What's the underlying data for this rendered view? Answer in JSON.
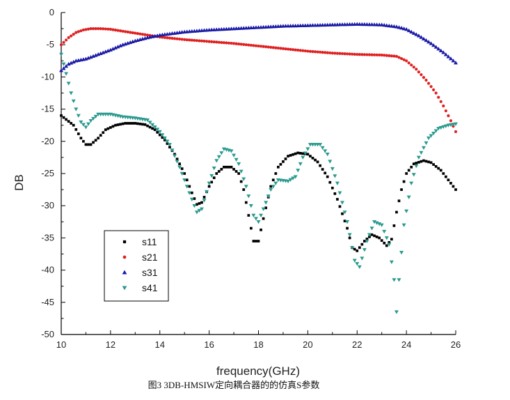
{
  "chart_data": {
    "type": "scatter",
    "xlabel": "frequency(GHz)",
    "ylabel": "DB",
    "caption": "图3 3DB-HMSIW定向耦合器的的仿真S参数",
    "xlim": [
      10,
      26
    ],
    "ylim": [
      -50,
      0
    ],
    "x_ticks": [
      10,
      12,
      14,
      16,
      18,
      20,
      22,
      24,
      26
    ],
    "y_ticks": [
      0,
      -5,
      -10,
      -15,
      -20,
      -25,
      -30,
      -35,
      -40,
      -45,
      -50
    ],
    "grid": false,
    "legend_position": "bottom-left",
    "series": [
      {
        "name": "s11",
        "marker": "square",
        "color": "#000000",
        "points": [
          [
            10.0,
            -16.0
          ],
          [
            10.5,
            -17.5
          ],
          [
            10.8,
            -19.5
          ],
          [
            11.0,
            -20.5
          ],
          [
            11.2,
            -20.5
          ],
          [
            11.5,
            -19.5
          ],
          [
            11.8,
            -18.2
          ],
          [
            12.2,
            -17.5
          ],
          [
            12.6,
            -17.2
          ],
          [
            13.0,
            -17.2
          ],
          [
            13.4,
            -17.4
          ],
          [
            13.8,
            -18.2
          ],
          [
            14.2,
            -19.8
          ],
          [
            14.6,
            -22.0
          ],
          [
            15.0,
            -25.0
          ],
          [
            15.3,
            -28.0
          ],
          [
            15.5,
            -29.8
          ],
          [
            15.7,
            -29.5
          ],
          [
            16.0,
            -27.0
          ],
          [
            16.3,
            -25.0
          ],
          [
            16.6,
            -24.0
          ],
          [
            16.9,
            -24.0
          ],
          [
            17.2,
            -25.0
          ],
          [
            17.4,
            -27.5
          ],
          [
            17.6,
            -31.5
          ],
          [
            17.8,
            -35.5
          ],
          [
            18.0,
            -35.5
          ],
          [
            18.2,
            -32.0
          ],
          [
            18.5,
            -27.0
          ],
          [
            18.8,
            -24.0
          ],
          [
            19.2,
            -22.3
          ],
          [
            19.6,
            -21.8
          ],
          [
            20.0,
            -22.0
          ],
          [
            20.4,
            -23.2
          ],
          [
            20.8,
            -25.5
          ],
          [
            21.2,
            -29.0
          ],
          [
            21.6,
            -33.5
          ],
          [
            21.8,
            -36.5
          ],
          [
            22.0,
            -37.0
          ],
          [
            22.3,
            -35.5
          ],
          [
            22.6,
            -34.5
          ],
          [
            22.9,
            -35.0
          ],
          [
            23.2,
            -36.2
          ],
          [
            23.4,
            -35.2
          ],
          [
            23.6,
            -31.0
          ],
          [
            23.8,
            -27.5
          ],
          [
            24.0,
            -25.0
          ],
          [
            24.3,
            -23.5
          ],
          [
            24.7,
            -23.0
          ],
          [
            25.0,
            -23.3
          ],
          [
            25.4,
            -24.5
          ],
          [
            25.7,
            -26.0
          ],
          [
            26.0,
            -27.5
          ]
        ]
      },
      {
        "name": "s21",
        "marker": "circle",
        "color": "#e02020",
        "points": [
          [
            10.0,
            -5.0
          ],
          [
            10.3,
            -3.9
          ],
          [
            10.6,
            -3.1
          ],
          [
            10.9,
            -2.7
          ],
          [
            11.2,
            -2.5
          ],
          [
            11.6,
            -2.5
          ],
          [
            12.0,
            -2.6
          ],
          [
            12.5,
            -2.9
          ],
          [
            13.0,
            -3.2
          ],
          [
            13.5,
            -3.5
          ],
          [
            14.0,
            -3.8
          ],
          [
            15.0,
            -4.2
          ],
          [
            16.0,
            -4.5
          ],
          [
            17.0,
            -4.8
          ],
          [
            18.0,
            -5.2
          ],
          [
            19.0,
            -5.6
          ],
          [
            20.0,
            -6.0
          ],
          [
            21.0,
            -6.3
          ],
          [
            22.0,
            -6.5
          ],
          [
            23.0,
            -6.6
          ],
          [
            23.6,
            -6.8
          ],
          [
            24.0,
            -7.5
          ],
          [
            24.4,
            -8.8
          ],
          [
            24.8,
            -10.5
          ],
          [
            25.2,
            -12.5
          ],
          [
            25.5,
            -14.5
          ],
          [
            25.8,
            -16.8
          ],
          [
            26.0,
            -18.5
          ]
        ]
      },
      {
        "name": "s31",
        "marker": "triangle-up",
        "color": "#1a1aa6",
        "points": [
          [
            10.0,
            -9.0
          ],
          [
            10.3,
            -8.0
          ],
          [
            10.6,
            -7.5
          ],
          [
            11.0,
            -7.2
          ],
          [
            11.5,
            -6.5
          ],
          [
            12.0,
            -5.8
          ],
          [
            12.5,
            -5.0
          ],
          [
            13.0,
            -4.4
          ],
          [
            13.5,
            -3.9
          ],
          [
            14.0,
            -3.5
          ],
          [
            15.0,
            -3.0
          ],
          [
            16.0,
            -2.7
          ],
          [
            17.0,
            -2.5
          ],
          [
            18.0,
            -2.3
          ],
          [
            19.0,
            -2.1
          ],
          [
            20.0,
            -2.0
          ],
          [
            21.0,
            -1.9
          ],
          [
            22.0,
            -1.8
          ],
          [
            23.0,
            -1.9
          ],
          [
            23.6,
            -2.2
          ],
          [
            24.0,
            -2.6
          ],
          [
            24.5,
            -3.6
          ],
          [
            25.0,
            -4.8
          ],
          [
            25.5,
            -6.2
          ],
          [
            26.0,
            -7.8
          ]
        ]
      },
      {
        "name": "s41",
        "marker": "triangle-down",
        "color": "#2a9a8e",
        "points": [
          [
            10.0,
            -6.5
          ],
          [
            10.2,
            -9.5
          ],
          [
            10.4,
            -12.5
          ],
          [
            10.6,
            -15.0
          ],
          [
            10.8,
            -17.0
          ],
          [
            11.0,
            -17.8
          ],
          [
            11.2,
            -16.8
          ],
          [
            11.5,
            -15.8
          ],
          [
            12.0,
            -15.8
          ],
          [
            12.5,
            -16.2
          ],
          [
            13.0,
            -16.4
          ],
          [
            13.5,
            -16.7
          ],
          [
            14.0,
            -18.5
          ],
          [
            14.4,
            -20.5
          ],
          [
            14.8,
            -24.0
          ],
          [
            15.2,
            -28.0
          ],
          [
            15.5,
            -31.0
          ],
          [
            15.7,
            -30.5
          ],
          [
            16.0,
            -26.5
          ],
          [
            16.3,
            -23.0
          ],
          [
            16.6,
            -21.2
          ],
          [
            16.9,
            -21.5
          ],
          [
            17.2,
            -23.5
          ],
          [
            17.5,
            -27.0
          ],
          [
            17.8,
            -31.5
          ],
          [
            18.0,
            -32.5
          ],
          [
            18.2,
            -30.5
          ],
          [
            18.5,
            -27.5
          ],
          [
            18.8,
            -26.0
          ],
          [
            19.2,
            -26.2
          ],
          [
            19.5,
            -25.5
          ],
          [
            19.8,
            -22.5
          ],
          [
            20.1,
            -20.5
          ],
          [
            20.5,
            -20.5
          ],
          [
            20.8,
            -22.0
          ],
          [
            21.2,
            -26.5
          ],
          [
            21.6,
            -32.5
          ],
          [
            21.9,
            -38.5
          ],
          [
            22.1,
            -39.5
          ],
          [
            22.4,
            -35.5
          ],
          [
            22.7,
            -32.5
          ],
          [
            23.0,
            -33.0
          ],
          [
            23.3,
            -36.0
          ],
          [
            23.5,
            -41.5
          ],
          [
            23.6,
            -46.5
          ],
          [
            23.7,
            -41.5
          ],
          [
            23.9,
            -33.0
          ],
          [
            24.2,
            -26.5
          ],
          [
            24.5,
            -22.5
          ],
          [
            24.9,
            -19.5
          ],
          [
            25.3,
            -18.0
          ],
          [
            25.7,
            -17.5
          ],
          [
            26.0,
            -17.3
          ]
        ]
      }
    ]
  }
}
